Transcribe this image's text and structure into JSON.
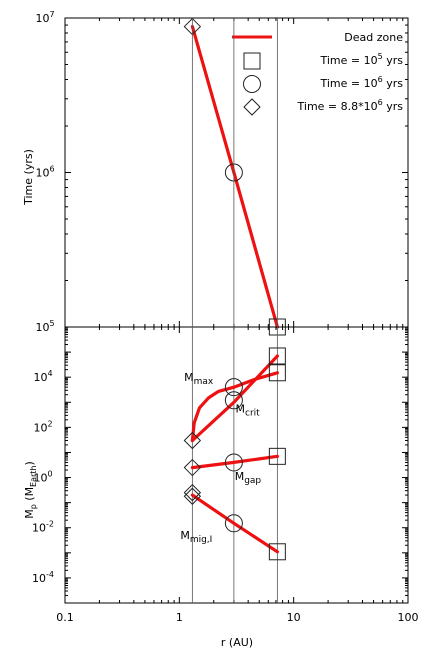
{
  "chart_data": [
    {
      "type": "line",
      "panel": "top",
      "xscale": "log",
      "yscale": "log",
      "xlim": [
        0.1,
        100
      ],
      "ylim": [
        100000,
        10000000
      ],
      "ylabel": "Time (yrs)",
      "yticks": [
        {
          "value": 100000,
          "base": "10",
          "exp": "5"
        },
        {
          "value": 1000000,
          "base": "10",
          "exp": "6"
        },
        {
          "value": 10000000,
          "base": "10",
          "exp": "7"
        }
      ],
      "legend_position": "top-right",
      "legend": [
        {
          "key": "dead_zone",
          "marker": "line",
          "text": "Dead zone",
          "sup": "",
          "after": ""
        },
        {
          "key": "t1e5",
          "marker": "square",
          "text": "Time = 10",
          "sup": "5",
          "after": " yrs"
        },
        {
          "key": "t1e6",
          "marker": "circle",
          "text": "Time = 10",
          "sup": "6",
          "after": " yrs"
        },
        {
          "key": "t88e6",
          "marker": "diamond",
          "text": "Time = 8.8*10",
          "sup": "6",
          "after": " yrs"
        }
      ],
      "series": [
        {
          "name": "Dead zone",
          "color": "#ee1111",
          "points": [
            [
              1.3,
              8800000
            ],
            [
              3.0,
              1000000
            ],
            [
              7.2,
              100000
            ]
          ]
        }
      ],
      "markers": [
        {
          "shape": "diamond",
          "x": 1.3,
          "y": 8800000
        },
        {
          "shape": "circle",
          "x": 3.0,
          "y": 1000000
        },
        {
          "shape": "square",
          "x": 7.2,
          "y": 100000
        }
      ]
    },
    {
      "type": "line",
      "panel": "bottom",
      "xscale": "log",
      "yscale": "log",
      "xlim": [
        0.1,
        100
      ],
      "ylim": [
        1e-05,
        1000000
      ],
      "xlabel": "r (AU)",
      "ylabel": {
        "main": "M",
        "sub1": "p",
        "mid": " (M",
        "sub2": "Earth",
        "end": ")"
      },
      "xticks": [
        {
          "value": 0.1,
          "label": "0.1"
        },
        {
          "value": 1,
          "label": "1"
        },
        {
          "value": 10,
          "label": "10"
        },
        {
          "value": 100,
          "label": "100"
        }
      ],
      "yticks": [
        {
          "value": 0.0001,
          "base": "10",
          "exp": "-4"
        },
        {
          "value": 0.01,
          "base": "10",
          "exp": "-2"
        },
        {
          "value": 1,
          "base": "10",
          "exp": "0"
        },
        {
          "value": 100,
          "base": "10",
          "exp": "2"
        },
        {
          "value": 10000,
          "base": "10",
          "exp": "4"
        }
      ],
      "series": [
        {
          "name": "M_max",
          "color": "#ee1111",
          "points": [
            [
              1.3,
              30
            ],
            [
              1.35,
              150
            ],
            [
              1.5,
              600
            ],
            [
              1.8,
              1500
            ],
            [
              2.2,
              2700
            ],
            [
              3.0,
              4000
            ],
            [
              4.5,
              8000
            ],
            [
              7.2,
              15000
            ]
          ]
        },
        {
          "name": "M_crit",
          "color": "#ee1111",
          "points": [
            [
              1.3,
              30
            ],
            [
              3.0,
              1000
            ],
            [
              7.2,
              70000
            ]
          ]
        },
        {
          "name": "M_gap",
          "color": "#ee1111",
          "points": [
            [
              1.3,
              2.5
            ],
            [
              3.0,
              4
            ],
            [
              7.2,
              7
            ]
          ]
        },
        {
          "name": "M_mig,I",
          "color": "#ee1111",
          "points": [
            [
              1.3,
              0.2
            ],
            [
              3.0,
              0.015
            ],
            [
              7.2,
              0.0011
            ]
          ]
        }
      ],
      "markers": [
        {
          "shape": "diamond",
          "x": 1.3,
          "y": 30
        },
        {
          "shape": "diamond",
          "x": 1.3,
          "y": 2.5
        },
        {
          "shape": "diamond",
          "x": 1.3,
          "y": 0.25
        },
        {
          "shape": "diamond",
          "x": 1.3,
          "y": 0.18
        },
        {
          "shape": "circle",
          "x": 3.0,
          "y": 4000
        },
        {
          "shape": "circle",
          "x": 3.0,
          "y": 1200
        },
        {
          "shape": "circle",
          "x": 3.0,
          "y": 4
        },
        {
          "shape": "circle",
          "x": 3.0,
          "y": 0.015
        },
        {
          "shape": "square",
          "x": 7.2,
          "y": 70000
        },
        {
          "shape": "square",
          "x": 7.2,
          "y": 15000
        },
        {
          "shape": "square",
          "x": 7.2,
          "y": 7
        },
        {
          "shape": "square",
          "x": 7.2,
          "y": 0.0011
        }
      ],
      "vlines": [
        1.3,
        3.0,
        7.2
      ],
      "annotations": [
        {
          "key": "max",
          "main": "M",
          "sub": "max",
          "x": 1.1,
          "y": 7000
        },
        {
          "key": "crit",
          "main": "M",
          "sub": "crit",
          "x": 3.1,
          "y": 400
        },
        {
          "key": "gap",
          "main": "M",
          "sub": "gap",
          "x": 3.05,
          "y": 0.8
        },
        {
          "key": "mig",
          "main": "M",
          "sub": "mig,I",
          "x": 1.02,
          "y": 0.0035
        }
      ]
    }
  ]
}
